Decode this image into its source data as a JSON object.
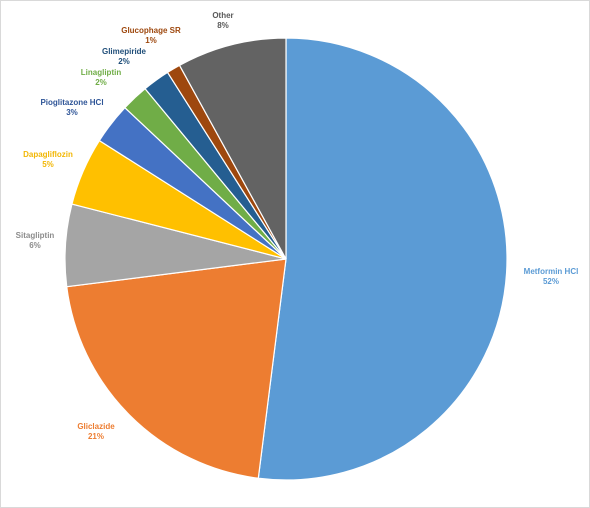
{
  "chart_data": {
    "type": "pie",
    "title": "",
    "legend": "none",
    "start_angle_deg": 0,
    "direction": "clockwise",
    "slices": [
      {
        "label": "Metformin HCl",
        "percent_label": "52%",
        "value": 52,
        "color": "#5B9BD5",
        "label_color": "#5B9BD5"
      },
      {
        "label": "Gliclazide",
        "percent_label": "21%",
        "value": 21,
        "color": "#ED7D31",
        "label_color": "#ED7D31"
      },
      {
        "label": "Sitagliptin",
        "percent_label": "6%",
        "value": 6,
        "color": "#A5A5A5",
        "label_color": "#8C8C8C"
      },
      {
        "label": "Dapagliflozin",
        "percent_label": "5%",
        "value": 5,
        "color": "#FFC000",
        "label_color": "#F2B705"
      },
      {
        "label": "Pioglitazone HCl",
        "percent_label": "3%",
        "value": 3,
        "color": "#4472C4",
        "label_color": "#2F5597"
      },
      {
        "label": "Linagliptin",
        "percent_label": "2%",
        "value": 2,
        "color": "#70AD47",
        "label_color": "#70AD47"
      },
      {
        "label": "Glimepiride",
        "percent_label": "2%",
        "value": 2,
        "color": "#255E91",
        "label_color": "#1F4E79"
      },
      {
        "label": "Glucophage SR",
        "percent_label": "1%",
        "value": 1,
        "color": "#9E480E",
        "label_color": "#9E480E"
      },
      {
        "label": "Other",
        "percent_label": "8%",
        "value": 8,
        "color": "#636363",
        "label_color": "#595959"
      }
    ]
  }
}
